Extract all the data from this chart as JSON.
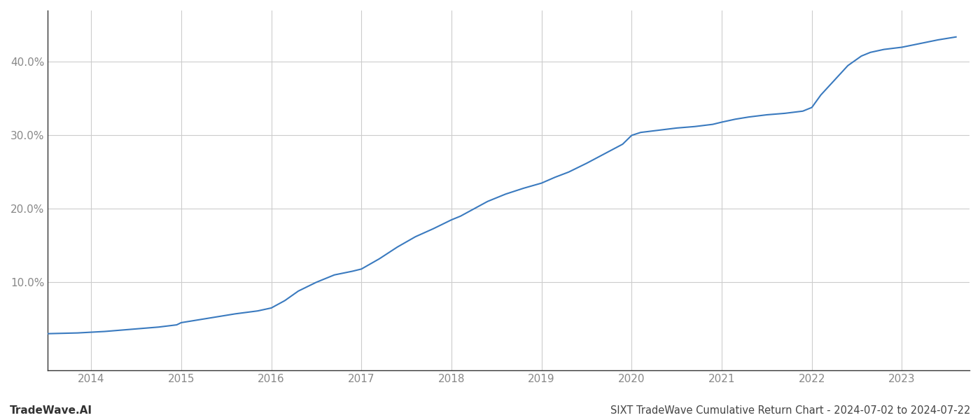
{
  "title": "SIXT TradeWave Cumulative Return Chart - 2024-07-02 to 2024-07-22",
  "watermark": "TradeWave.AI",
  "line_color": "#3a7abf",
  "background_color": "#ffffff",
  "grid_color": "#cccccc",
  "x_years": [
    2014,
    2015,
    2016,
    2017,
    2018,
    2019,
    2020,
    2021,
    2022,
    2023
  ],
  "y_ticks": [
    10.0,
    20.0,
    30.0,
    40.0
  ],
  "xlim": [
    2013.52,
    2023.75
  ],
  "ylim": [
    -2,
    47
  ],
  "data_x": [
    2013.52,
    2013.85,
    2014.0,
    2014.15,
    2014.35,
    2014.55,
    2014.75,
    2014.95,
    2015.0,
    2015.2,
    2015.4,
    2015.6,
    2015.85,
    2016.0,
    2016.15,
    2016.3,
    2016.5,
    2016.7,
    2016.9,
    2017.0,
    2017.2,
    2017.4,
    2017.6,
    2017.8,
    2018.0,
    2018.1,
    2018.25,
    2018.4,
    2018.6,
    2018.8,
    2019.0,
    2019.15,
    2019.3,
    2019.5,
    2019.7,
    2019.9,
    2020.0,
    2020.1,
    2020.3,
    2020.5,
    2020.7,
    2020.9,
    2021.0,
    2021.15,
    2021.3,
    2021.5,
    2021.7,
    2021.9,
    2022.0,
    2022.1,
    2022.25,
    2022.4,
    2022.55,
    2022.65,
    2022.8,
    2023.0,
    2023.2,
    2023.4,
    2023.6
  ],
  "data_y": [
    3.0,
    3.1,
    3.2,
    3.3,
    3.5,
    3.7,
    3.9,
    4.2,
    4.5,
    4.9,
    5.3,
    5.7,
    6.1,
    6.5,
    7.5,
    8.8,
    10.0,
    11.0,
    11.5,
    11.8,
    13.2,
    14.8,
    16.2,
    17.3,
    18.5,
    19.0,
    20.0,
    21.0,
    22.0,
    22.8,
    23.5,
    24.3,
    25.0,
    26.2,
    27.5,
    28.8,
    30.0,
    30.4,
    30.7,
    31.0,
    31.2,
    31.5,
    31.8,
    32.2,
    32.5,
    32.8,
    33.0,
    33.3,
    33.8,
    35.5,
    37.5,
    39.5,
    40.8,
    41.3,
    41.7,
    42.0,
    42.5,
    43.0,
    43.4
  ]
}
